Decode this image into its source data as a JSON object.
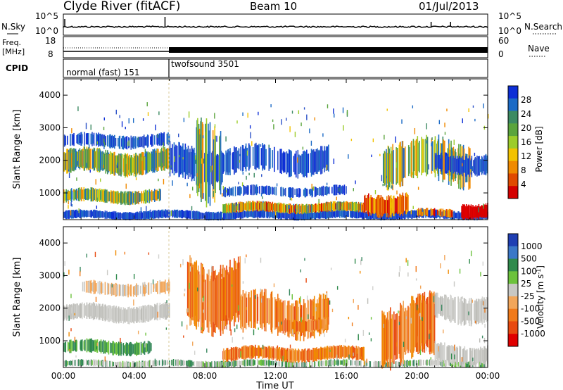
{
  "header": {
    "station": "Clyde River (fitACF)",
    "beam": "Beam 10",
    "date": "01/Jul/2013"
  },
  "labels": {
    "n_sky": "N.Sky",
    "n_search": "N.Search",
    "n_exp_top": "10^5",
    "n_exp_bottom": "10^0",
    "freq_label_1": "Freq.",
    "freq_label_2": "[MHz]",
    "freq_ticks": [
      "18",
      "8"
    ],
    "nave": "Nave",
    "nave_ticks": [
      "60",
      "0"
    ],
    "cpid": "CPID",
    "cpid_programs": [
      "normal (fast) 151",
      "twofsound 3501"
    ]
  },
  "chart_data": [
    {
      "type": "heatmap",
      "panel": "power",
      "ylabel": "Slant Range [km]",
      "yticks": [
        "1000",
        "2000",
        "3000",
        "4000"
      ],
      "ylim": [
        180,
        4500
      ],
      "xlim": [
        "00:00",
        "24:00"
      ],
      "xticks": [
        "00:00",
        "04:00",
        "08:00",
        "12:00",
        "16:00",
        "20:00",
        "00:00"
      ],
      "colorbar": {
        "label": "Power [dB]",
        "ticks": [
          "4",
          "8",
          "12",
          "16",
          "20",
          "24",
          "28"
        ],
        "colors": [
          "#0d2fd6",
          "#1c6bc6",
          "#3c8a62",
          "#5aa43c",
          "#9ccc2a",
          "#f2c200",
          "#f08a00",
          "#e04a00",
          "#d40000"
        ]
      }
    },
    {
      "type": "heatmap",
      "panel": "velocity",
      "ylabel": "Slant Range [km]",
      "xlabel": "Time UT",
      "yticks": [
        "1000",
        "2000",
        "3000",
        "4000"
      ],
      "ylim": [
        180,
        4500
      ],
      "xlim": [
        "00:00",
        "24:00"
      ],
      "xticks": [
        "00:00",
        "04:00",
        "08:00",
        "12:00",
        "16:00",
        "20:00",
        "00:00"
      ],
      "colorbar": {
        "label": "Velocity [m s-1]",
        "ticks": [
          "1000",
          "500",
          "100",
          "25",
          "-25",
          "-100",
          "-500",
          "-1000"
        ],
        "colors": [
          "#1f3fb3",
          "#3b78c8",
          "#2f8a4c",
          "#6cc23c",
          "#c8c8c4",
          "#f2a65a",
          "#f07a1a",
          "#e84a10",
          "#e00000"
        ]
      }
    }
  ],
  "colors": {
    "grey_scatter": "#bdbdb8",
    "ground_scatter_power": "#1a3fcf"
  }
}
